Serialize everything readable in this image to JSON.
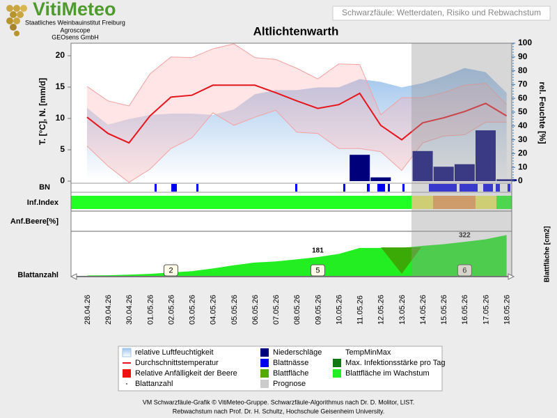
{
  "chart_data": {
    "type": "combo",
    "title": "Altlichtenwarth",
    "header": "Schwarzfäule: Wetterdaten, Risiko und Rebwachstum",
    "logo": {
      "name": "VitiMeteo",
      "lines": [
        "Staatliches Weinbauinstitut Freiburg",
        "Agroscope",
        "GEOsens GmbH"
      ]
    },
    "footer": [
      "VM Schwarzfäule-Grafik © VitiMeteo-Gruppe. Schwarzfäule-Algorithmus nach Dr. D. Molitor, LIST.",
      "Rebwachstum nach Prof. Dr. H. Schultz, Hochschule Geisenheim University."
    ],
    "ylabel": "T. [°C], N. [mm/d]",
    "y2label": "rel. Feuchte [%]",
    "y3label": "Blattfläche [cm2]",
    "rows": [
      "BN",
      "Inf.Index",
      "Anf.Beere[%]",
      "Blattanzahl"
    ],
    "categories": [
      "28.04.26",
      "29.04.26",
      "30.04.26",
      "01.05.26",
      "02.05.26",
      "03.05.26",
      "04.05.26",
      "05.05.26",
      "06.05.26",
      "07.05.26",
      "08.05.26",
      "09.05.26",
      "10.05.26",
      "11.05.26",
      "12.05.26",
      "13.05.26",
      "14.05.26",
      "15.05.26",
      "16.05.26",
      "17.05.26",
      "18.05.26"
    ],
    "ylim": [
      0,
      22
    ],
    "yticks": [
      0,
      5,
      10,
      15,
      20
    ],
    "y2lim": [
      0,
      100
    ],
    "y2ticks": [
      0,
      10,
      20,
      30,
      40,
      50,
      60,
      70,
      80,
      90,
      100
    ],
    "y3lim": [
      0,
      400
    ],
    "grid": false,
    "series": [
      {
        "name": "relative Luftfeuchtigkeit",
        "color": "#9fc4ec",
        "axis": "y2",
        "values": [
          53,
          41,
          45,
          48,
          49,
          49,
          48,
          52,
          63,
          66,
          66,
          68,
          68,
          74,
          72,
          68,
          71,
          76,
          82,
          79,
          64
        ]
      },
      {
        "name": "Durchschnittstemperatur",
        "color": "#e8141c",
        "values": [
          10.2,
          7.6,
          6.1,
          10.4,
          13.4,
          13.7,
          15.3,
          15.3,
          15.3,
          14.1,
          12.8,
          11.6,
          12.2,
          14.0,
          8.9,
          6.6,
          9.3,
          10.1,
          11.1,
          12.4,
          10.4
        ]
      },
      {
        "name": "TempMinMax",
        "color": "#f4a0a0",
        "values": [
          15.1,
          12.8,
          12.0,
          17.1,
          19.8,
          19.7,
          21.1,
          21.9,
          19.7,
          19.4,
          18.0,
          16.3,
          18.7,
          18.6,
          10.6,
          13.3,
          13.3,
          14.1,
          15.3,
          15.6,
          12.2
        ],
        "low": [
          5.6,
          2.4,
          -0.2,
          1.9,
          5.2,
          6.9,
          10.9,
          8.9,
          10.2,
          11.3,
          7.8,
          7.6,
          5.2,
          5.2,
          4.7,
          1.7,
          6.1,
          7.2,
          7.4,
          9.4,
          9.4
        ]
      },
      {
        "name": "Niederschläge",
        "color": "#00007a",
        "values": [
          0,
          0,
          0,
          0,
          0,
          0,
          0,
          0,
          0,
          0,
          0,
          0,
          0,
          4.2,
          0.6,
          0,
          4.8,
          2.3,
          2.7,
          8.1,
          0.3
        ]
      },
      {
        "name": "Blattfläche im Wachstum",
        "color": "#22ee22",
        "axis": "y3",
        "values": [
          10,
          12,
          18,
          25,
          38,
          50,
          75,
          105,
          130,
          140,
          160,
          181,
          210,
          265,
          265,
          265,
          285,
          300,
          322,
          345,
          385
        ],
        "value_labels": [
          null,
          null,
          null,
          null,
          null,
          null,
          null,
          null,
          null,
          null,
          null,
          "181",
          null,
          null,
          null,
          null,
          null,
          null,
          "322",
          null,
          null
        ]
      },
      {
        "name": "Blattanzahl",
        "color": "#555555",
        "values": [
          null,
          null,
          null,
          null,
          2,
          null,
          null,
          null,
          null,
          null,
          null,
          5,
          null,
          null,
          null,
          null,
          null,
          null,
          6,
          null,
          null
        ]
      }
    ],
    "legend_extra": [
      {
        "name": "Blattnässe",
        "color": "#0000ee"
      },
      {
        "name": "Relative Anfälligkeit der Beere",
        "color": "#ee1111"
      },
      {
        "name": "Blattfläche",
        "color": "#55aa00"
      },
      {
        "name": "Max. Infektionsstärke pro Tag",
        "color": "#117711"
      },
      {
        "name": "Prognose",
        "color": "#cccccc"
      }
    ]
  }
}
